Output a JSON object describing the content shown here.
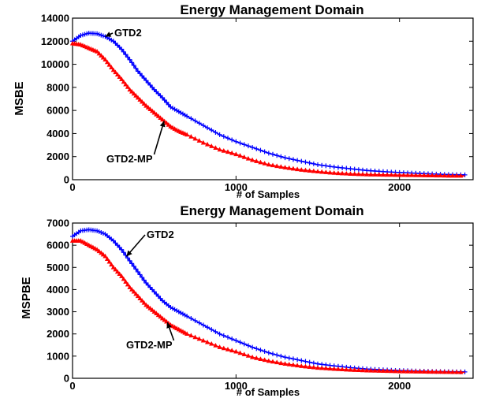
{
  "chart_data": [
    {
      "type": "line",
      "title": "Energy Management Domain",
      "xlabel": "# of Samples",
      "ylabel": "MSBE",
      "xlim": [
        0,
        2450
      ],
      "ylim": [
        0,
        14000
      ],
      "xticks": [
        0,
        1000,
        2000
      ],
      "yticks": [
        0,
        2000,
        4000,
        6000,
        8000,
        10000,
        12000,
        14000
      ],
      "grid": false,
      "series": [
        {
          "name": "GTD2",
          "color": "#0000ff",
          "marker": "plus",
          "x": [
            0,
            50,
            100,
            150,
            200,
            250,
            300,
            350,
            400,
            450,
            500,
            550,
            600,
            650,
            700,
            800,
            900,
            1000,
            1100,
            1200,
            1300,
            1400,
            1500,
            1600,
            1700,
            1800,
            1900,
            2000,
            2100,
            2200,
            2300,
            2400
          ],
          "y": [
            12000,
            12500,
            12700,
            12650,
            12400,
            12000,
            11300,
            10400,
            9400,
            8600,
            7800,
            7100,
            6300,
            5900,
            5500,
            4700,
            3900,
            3300,
            2800,
            2300,
            1900,
            1600,
            1300,
            1100,
            950,
            800,
            700,
            620,
            560,
            500,
            450,
            420
          ]
        },
        {
          "name": "GTD2-MP",
          "color": "#ff0000",
          "marker": "triangle",
          "x": [
            0,
            50,
            100,
            150,
            200,
            250,
            300,
            350,
            400,
            450,
            500,
            550,
            600,
            650,
            700,
            800,
            900,
            1000,
            1100,
            1200,
            1300,
            1400,
            1500,
            1600,
            1700,
            1800,
            1900,
            2000,
            2100,
            2200,
            2300,
            2400
          ],
          "y": [
            11800,
            11700,
            11400,
            11100,
            10400,
            9500,
            8700,
            7800,
            7100,
            6400,
            5800,
            5200,
            4600,
            4200,
            3900,
            3200,
            2600,
            2200,
            1700,
            1300,
            1050,
            850,
            700,
            580,
            500,
            450,
            420,
            400,
            380,
            360,
            340,
            330
          ]
        }
      ],
      "annotations": [
        {
          "text": "GTD2",
          "series": "GTD2",
          "at_x": 200
        },
        {
          "text": "GTD2-MP",
          "series": "GTD2-MP",
          "at_x": 560
        }
      ]
    },
    {
      "type": "line",
      "title": "Energy Management Domain",
      "xlabel": "# of Samples",
      "ylabel": "MSPBE",
      "xlim": [
        0,
        2450
      ],
      "ylim": [
        0,
        7000
      ],
      "xticks": [
        0,
        1000,
        2000
      ],
      "yticks": [
        0,
        1000,
        2000,
        3000,
        4000,
        5000,
        6000,
        7000
      ],
      "grid": false,
      "series": [
        {
          "name": "GTD2",
          "color": "#0000ff",
          "marker": "plus",
          "x": [
            0,
            50,
            100,
            150,
            200,
            250,
            300,
            350,
            400,
            450,
            500,
            550,
            600,
            650,
            700,
            800,
            900,
            1000,
            1100,
            1200,
            1300,
            1400,
            1500,
            1600,
            1700,
            1800,
            1900,
            2000,
            2100,
            2200,
            2300,
            2400
          ],
          "y": [
            6400,
            6650,
            6700,
            6650,
            6500,
            6200,
            5800,
            5300,
            4800,
            4300,
            3900,
            3500,
            3200,
            3000,
            2800,
            2400,
            2000,
            1700,
            1400,
            1150,
            950,
            800,
            650,
            560,
            480,
            420,
            380,
            350,
            330,
            310,
            300,
            290
          ]
        },
        {
          "name": "GTD2-MP",
          "color": "#ff0000",
          "marker": "triangle",
          "x": [
            0,
            50,
            100,
            150,
            200,
            250,
            300,
            350,
            400,
            450,
            500,
            550,
            600,
            650,
            700,
            800,
            900,
            1000,
            1100,
            1200,
            1300,
            1400,
            1500,
            1600,
            1700,
            1800,
            1900,
            2000,
            2100,
            2200,
            2300,
            2400
          ],
          "y": [
            6200,
            6200,
            6000,
            5800,
            5500,
            5000,
            4600,
            4100,
            3700,
            3300,
            3000,
            2700,
            2400,
            2200,
            2000,
            1700,
            1400,
            1200,
            950,
            780,
            650,
            550,
            470,
            420,
            380,
            350,
            330,
            310,
            300,
            290,
            280,
            270
          ]
        }
      ],
      "annotations": [
        {
          "text": "GTD2",
          "series": "GTD2",
          "at_x": 330
        },
        {
          "text": "GTD2-MP",
          "series": "GTD2-MP",
          "at_x": 580
        }
      ]
    }
  ]
}
